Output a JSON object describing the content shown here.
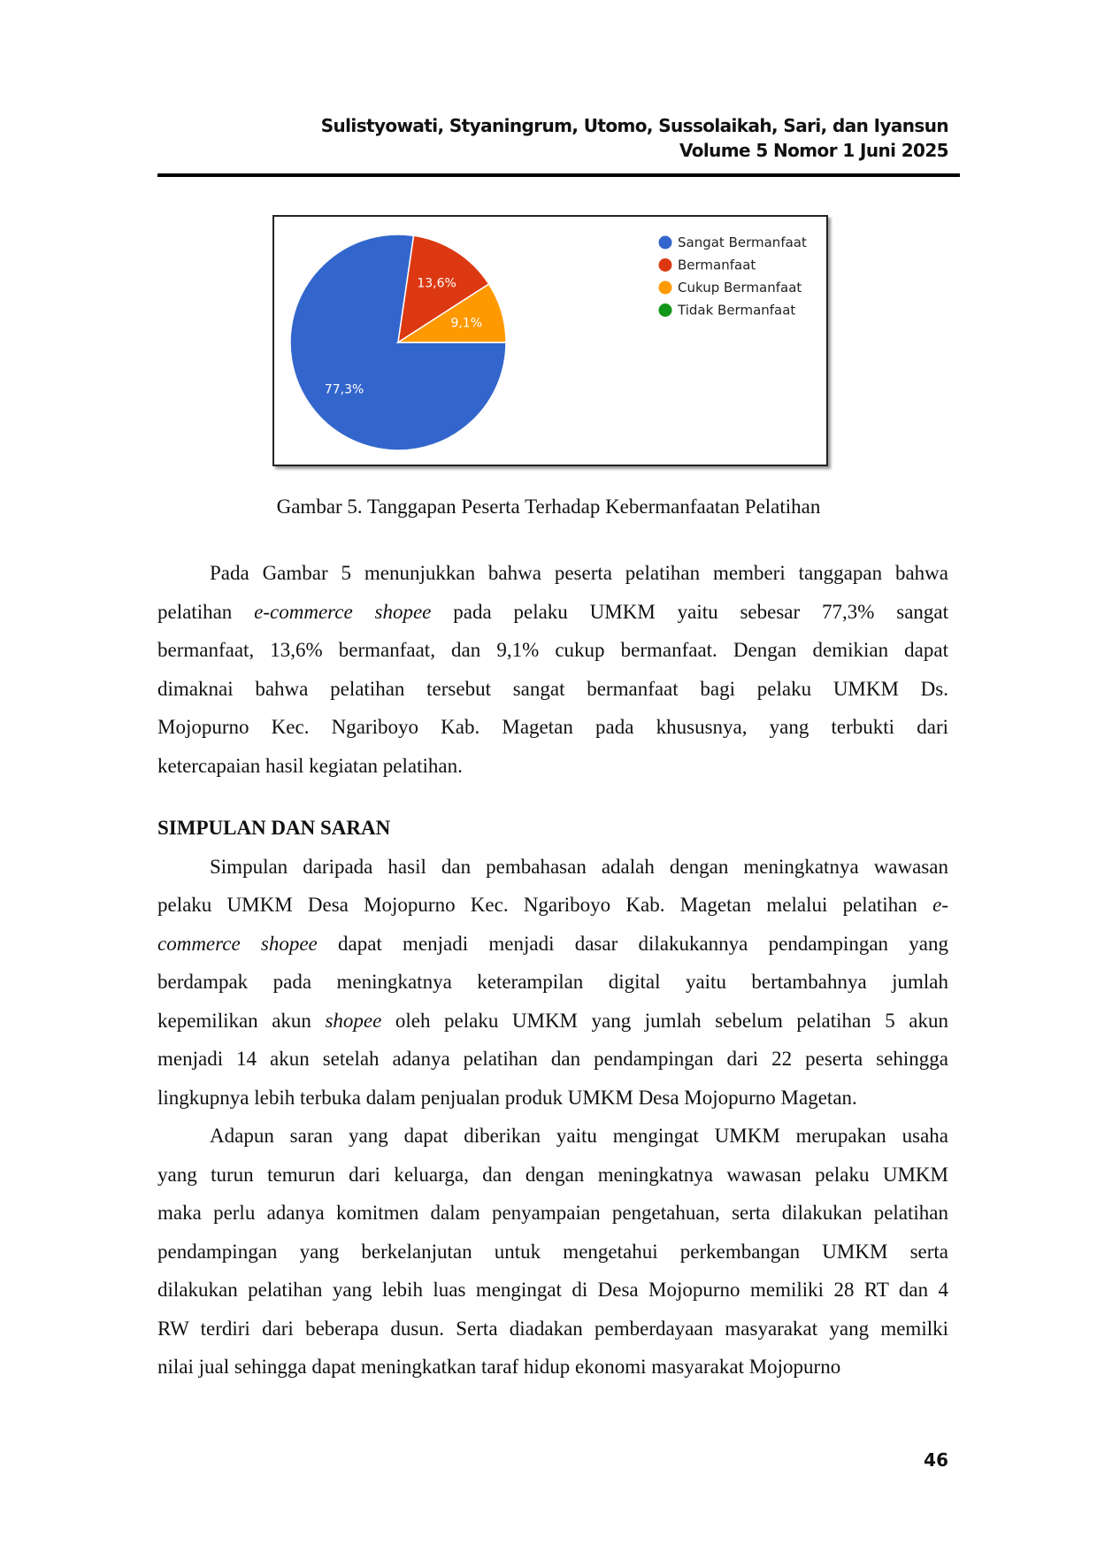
{
  "header": {
    "authors": "Sulistyowati, Styaningrum, Utomo, Sussolaikah, Sari, dan Iyansun",
    "volume": "Volume 5 Nomor 1 Juni 2025"
  },
  "chart_data": {
    "type": "pie",
    "categories": [
      "Sangat Bermanfaat",
      "Bermanfaat",
      "Cukup Bermanfaat",
      "Tidak Bermanfaat"
    ],
    "values": [
      77.3,
      13.6,
      9.1,
      0
    ],
    "labels": [
      "77,3%",
      "13,6%",
      "9,1%",
      ""
    ],
    "colors": [
      "#3366cc",
      "#dc3912",
      "#ff9900",
      "#109618"
    ],
    "legend_position": "right",
    "start_angle_deg": 90
  },
  "caption": "Gambar 5. Tanggapan Peserta Terhadap Kebermanfaatan Pelatihan",
  "sections": [
    {
      "type": "para",
      "lines": [
        [
          {
            "t": "Pada Gambar 5 menunjukkan bahwa peserta pelatihan memberi tanggapan bahwa"
          }
        ],
        [
          {
            "t": "pelatihan "
          },
          {
            "t": "e-commerce shopee",
            "i": true
          },
          {
            "t": " pada pelaku UMKM yaitu sebesar 77,3% sangat"
          }
        ],
        [
          {
            "t": "bermanfaat, 13,6% bermanfaat, dan 9,1% cukup bermanfaat. Dengan demikian dapat"
          }
        ],
        [
          {
            "t": "dimaknai bahwa pelatihan tersebut sangat bermanfaat bagi pelaku UMKM Ds."
          }
        ],
        [
          {
            "t": "Mojopurno Kec. Ngariboyo Kab. Magetan pada khususnya, yang terbukti dari"
          }
        ],
        [
          {
            "t": "ketercapaian hasil kegiatan pelatihan."
          }
        ]
      ]
    },
    {
      "type": "gap"
    },
    {
      "type": "heading",
      "text": "SIMPULAN DAN SARAN"
    },
    {
      "type": "para",
      "lines": [
        [
          {
            "t": "Simpulan daripada hasil dan pembahasan adalah dengan meningkatnya wawasan"
          }
        ],
        [
          {
            "t": "pelaku UMKM Desa Mojopurno Kec. Ngariboyo Kab. Magetan melalui pelatihan "
          },
          {
            "t": "e-",
            "i": true
          }
        ],
        [
          {
            "t": "commerce shopee",
            "i": true
          },
          {
            "t": " dapat menjadi menjadi dasar dilakukannya pendampingan yang"
          }
        ],
        [
          {
            "t": "berdampak pada meningkatnya keterampilan digital yaitu bertambahnya jumlah"
          }
        ],
        [
          {
            "t": "kepemilikan akun "
          },
          {
            "t": "shopee",
            "i": true
          },
          {
            "t": " oleh pelaku UMKM yang jumlah sebelum pelatihan 5 akun"
          }
        ],
        [
          {
            "t": "menjadi 14 akun setelah adanya pelatihan dan pendampingan dari 22 peserta sehingga"
          }
        ],
        [
          {
            "t": "lingkupnya lebih terbuka dalam penjualan produk UMKM Desa Mojopurno Magetan."
          }
        ]
      ]
    },
    {
      "type": "para",
      "lines": [
        [
          {
            "t": "Adapun saran yang dapat diberikan yaitu mengingat UMKM merupakan usaha"
          }
        ],
        [
          {
            "t": "yang turun temurun dari keluarga, dan dengan meningkatnya wawasan pelaku UMKM"
          }
        ],
        [
          {
            "t": "maka perlu adanya komitmen dalam penyampaian pengetahuan, serta dilakukan pelatihan"
          }
        ],
        [
          {
            "t": "pendampingan yang berkelanjutan untuk mengetahui perkembangan UMKM serta"
          }
        ],
        [
          {
            "t": "dilakukan pelatihan yang lebih luas mengingat di Desa Mojopurno memiliki 28 RT dan 4"
          }
        ],
        [
          {
            "t": "RW terdiri dari beberapa dusun. Serta diadakan pemberdayaan masyarakat yang memilki"
          }
        ],
        [
          {
            "t": "nilai jual sehingga dapat meningkatkan taraf hidup ekonomi masyarakat Mojopurno"
          }
        ]
      ]
    }
  ],
  "page_number": "46"
}
